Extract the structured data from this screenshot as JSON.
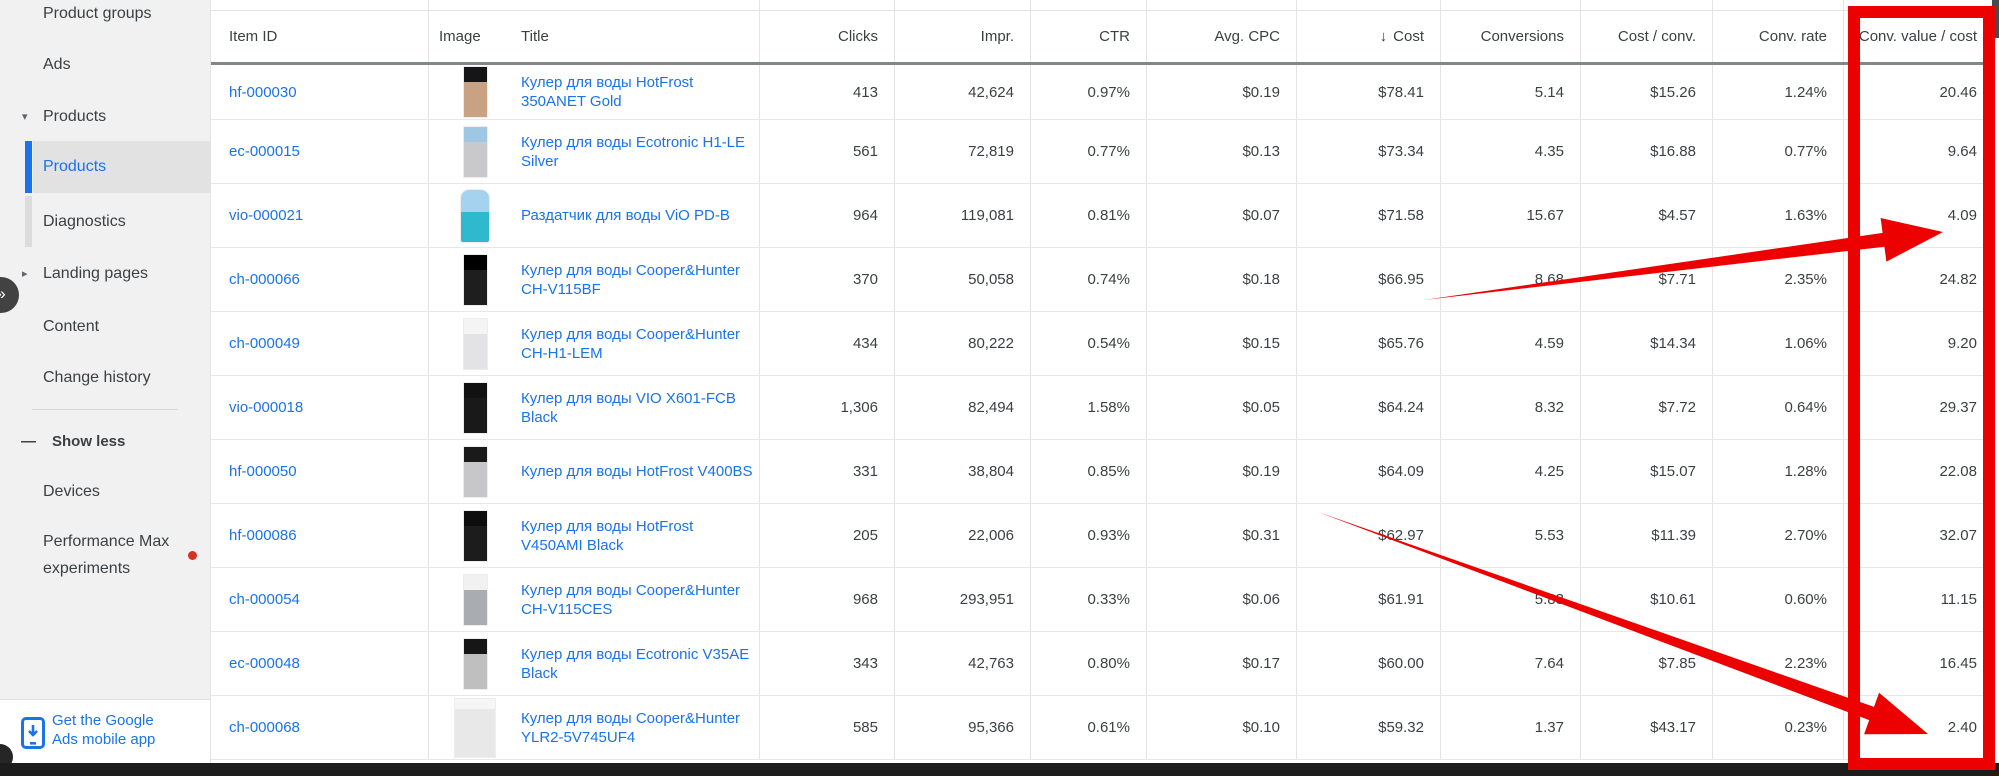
{
  "icons": {
    "collapse": "»",
    "expand_more": "▾",
    "chevron_right": "▸",
    "show_less_minus": "—",
    "sort_desc": "↓",
    "mobile_phone": "mobile-app-phone",
    "new_badge_dot": "red-dot"
  },
  "colors": {
    "accent_blue": "#1a73e8",
    "annotation_red": "#ec0000",
    "selected_rail": "#1a73e8",
    "sidebar_bg": "#f1f1f1",
    "scrollbar_dark": "#1c1c1c"
  },
  "sidebar": {
    "items": [
      {
        "label": "Product groups"
      },
      {
        "label": "Ads"
      },
      {
        "label": "Products",
        "state": "expanded"
      },
      {
        "label": "Products",
        "state": "selected"
      },
      {
        "label": "Diagnostics"
      },
      {
        "label": "Landing pages",
        "state": "collapsed"
      },
      {
        "label": "Content"
      },
      {
        "label": "Change history"
      },
      {
        "label": "Show less"
      },
      {
        "label": "Devices"
      },
      {
        "label": "Performance Max experiments",
        "badge": "red-dot"
      }
    ],
    "app_promo_label": "Get the Google Ads mobile app"
  },
  "table": {
    "columns": [
      {
        "key": "item_id",
        "label": "Item ID"
      },
      {
        "key": "image",
        "label": "Image"
      },
      {
        "key": "title",
        "label": "Title"
      },
      {
        "key": "clicks",
        "label": "Clicks"
      },
      {
        "key": "impr",
        "label": "Impr."
      },
      {
        "key": "ctr",
        "label": "CTR"
      },
      {
        "key": "avg_cpc",
        "label": "Avg. CPC"
      },
      {
        "key": "cost",
        "label": "Cost",
        "sorted": "desc"
      },
      {
        "key": "conversions",
        "label": "Conversions"
      },
      {
        "key": "cost_per_conv",
        "label": "Cost / conv."
      },
      {
        "key": "conv_rate",
        "label": "Conv. rate"
      },
      {
        "key": "conv_value_per_cost",
        "label": "Conv. value / cost"
      }
    ],
    "rows": [
      {
        "item_id": "hf-000030",
        "title": "Кулер для воды HotFrost 350ANET Gold",
        "image_colors": [
          "#151515",
          "#c9a183"
        ],
        "image_shape": "tall",
        "clicks": "413",
        "impr": "42,624",
        "ctr": "0.97%",
        "avg_cpc": "$0.19",
        "cost": "$78.41",
        "conversions": "5.14",
        "cost_per_conv": "$15.26",
        "conv_rate": "1.24%",
        "conv_value_per_cost": "20.46"
      },
      {
        "item_id": "ec-000015",
        "title": "Кулер для воды Ecotronic H1-LE Silver",
        "image_colors": [
          "#9ec7e4",
          "#c9c9cc"
        ],
        "image_shape": "tall",
        "clicks": "561",
        "impr": "72,819",
        "ctr": "0.77%",
        "avg_cpc": "$0.13",
        "cost": "$73.34",
        "conversions": "4.35",
        "cost_per_conv": "$16.88",
        "conv_rate": "0.77%",
        "conv_value_per_cost": "9.64"
      },
      {
        "item_id": "vio-000021",
        "title": "Раздатчик для воды ViO PD-B",
        "image_colors": [
          "#a5d3ef",
          "#2fb9cf"
        ],
        "image_shape": "bottle",
        "clicks": "964",
        "impr": "119,081",
        "ctr": "0.81%",
        "avg_cpc": "$0.07",
        "cost": "$71.58",
        "conversions": "15.67",
        "cost_per_conv": "$4.57",
        "conv_rate": "1.63%",
        "conv_value_per_cost": "4.09"
      },
      {
        "item_id": "ch-000066",
        "title": "Кулер для воды Cooper&Hunter CH-V115BF",
        "image_colors": [
          "#000000",
          "#1e1e1e"
        ],
        "image_shape": "tall",
        "clicks": "370",
        "impr": "50,058",
        "ctr": "0.74%",
        "avg_cpc": "$0.18",
        "cost": "$66.95",
        "conversions": "8.68",
        "cost_per_conv": "$7.71",
        "conv_rate": "2.35%",
        "conv_value_per_cost": "24.82"
      },
      {
        "item_id": "ch-000049",
        "title": "Кулер для воды Cooper&Hunter CH-H1-LEM",
        "image_colors": [
          "#f4f4f4",
          "#e3e3e5"
        ],
        "image_shape": "tall",
        "clicks": "434",
        "impr": "80,222",
        "ctr": "0.54%",
        "avg_cpc": "$0.15",
        "cost": "$65.76",
        "conversions": "4.59",
        "cost_per_conv": "$14.34",
        "conv_rate": "1.06%",
        "conv_value_per_cost": "9.20"
      },
      {
        "item_id": "vio-000018",
        "title": "Кулер для воды VIO X601-FCB Black",
        "image_colors": [
          "#111111",
          "#191919"
        ],
        "image_shape": "tall",
        "clicks": "1,306",
        "impr": "82,494",
        "ctr": "1.58%",
        "avg_cpc": "$0.05",
        "cost": "$64.24",
        "conversions": "8.32",
        "cost_per_conv": "$7.72",
        "conv_rate": "0.64%",
        "conv_value_per_cost": "29.37"
      },
      {
        "item_id": "hf-000050",
        "title": "Кулер для воды HotFrost V400BS",
        "image_colors": [
          "#1a1a1a",
          "#c7c7c9"
        ],
        "image_shape": "tall",
        "clicks": "331",
        "impr": "38,804",
        "ctr": "0.85%",
        "avg_cpc": "$0.19",
        "cost": "$64.09",
        "conversions": "4.25",
        "cost_per_conv": "$15.07",
        "conv_rate": "1.28%",
        "conv_value_per_cost": "22.08"
      },
      {
        "item_id": "hf-000086",
        "title": "Кулер для воды HotFrost V450AMI Black",
        "image_colors": [
          "#0d0d0d",
          "#1c1c1c"
        ],
        "image_shape": "tall",
        "clicks": "205",
        "impr": "22,006",
        "ctr": "0.93%",
        "avg_cpc": "$0.31",
        "cost": "$62.97",
        "conversions": "5.53",
        "cost_per_conv": "$11.39",
        "conv_rate": "2.70%",
        "conv_value_per_cost": "32.07"
      },
      {
        "item_id": "ch-000054",
        "title": "Кулер для воды Cooper&Hunter CH-V115CES",
        "image_colors": [
          "#f1f1f1",
          "#a9adb2"
        ],
        "image_shape": "tall",
        "clicks": "968",
        "impr": "293,951",
        "ctr": "0.33%",
        "avg_cpc": "$0.06",
        "cost": "$61.91",
        "conversions": "5.83",
        "cost_per_conv": "$10.61",
        "conv_rate": "0.60%",
        "conv_value_per_cost": "11.15"
      },
      {
        "item_id": "ec-000048",
        "title": "Кулер для воды Ecotronic V35AE Black",
        "image_colors": [
          "#161616",
          "#bfbfbf"
        ],
        "image_shape": "tall",
        "clicks": "343",
        "impr": "42,763",
        "ctr": "0.80%",
        "avg_cpc": "$0.17",
        "cost": "$60.00",
        "conversions": "7.64",
        "cost_per_conv": "$7.85",
        "conv_rate": "2.23%",
        "conv_value_per_cost": "16.45"
      },
      {
        "item_id": "ch-000068",
        "title": "Кулер для воды Cooper&Hunter YLR2-5V745UF4",
        "image_colors": [
          "#f6f6f6",
          "#e8e8e8"
        ],
        "image_shape": "box",
        "clicks": "585",
        "impr": "95,366",
        "ctr": "0.61%",
        "avg_cpc": "$0.10",
        "cost": "$59.32",
        "conversions": "1.37",
        "cost_per_conv": "$43.17",
        "conv_rate": "0.23%",
        "conv_value_per_cost": "2.40"
      }
    ]
  },
  "annotations": {
    "highlight_rect_column": "conv_value_per_cost",
    "arrow_1_target": "4.09",
    "arrow_2_target": "2.40"
  }
}
